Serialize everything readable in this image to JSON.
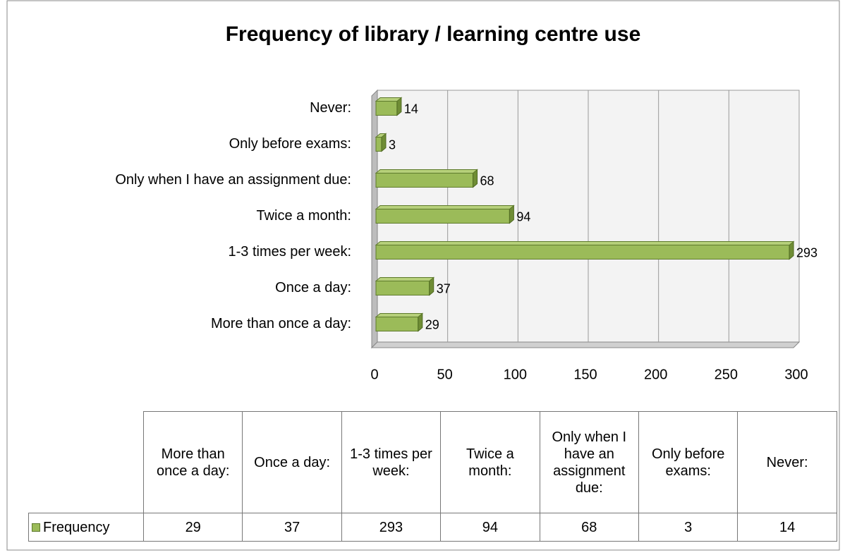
{
  "chart_data": {
    "type": "bar",
    "orientation": "horizontal",
    "title": "Frequency of library / learning centre use",
    "categories": [
      "More than once a day:",
      "Once a day:",
      "1-3 times per week:",
      "Twice a month:",
      "Only when I have an assignment due:",
      "Only before exams:",
      "Never:"
    ],
    "series": [
      {
        "name": "Frequency",
        "color": "#9bbb59",
        "values": [
          29,
          37,
          293,
          94,
          68,
          3,
          14
        ]
      }
    ],
    "xlim": [
      0,
      300
    ],
    "xticks": [
      0,
      50,
      100,
      150,
      200,
      250,
      300
    ],
    "grid": true,
    "data_table": true
  }
}
